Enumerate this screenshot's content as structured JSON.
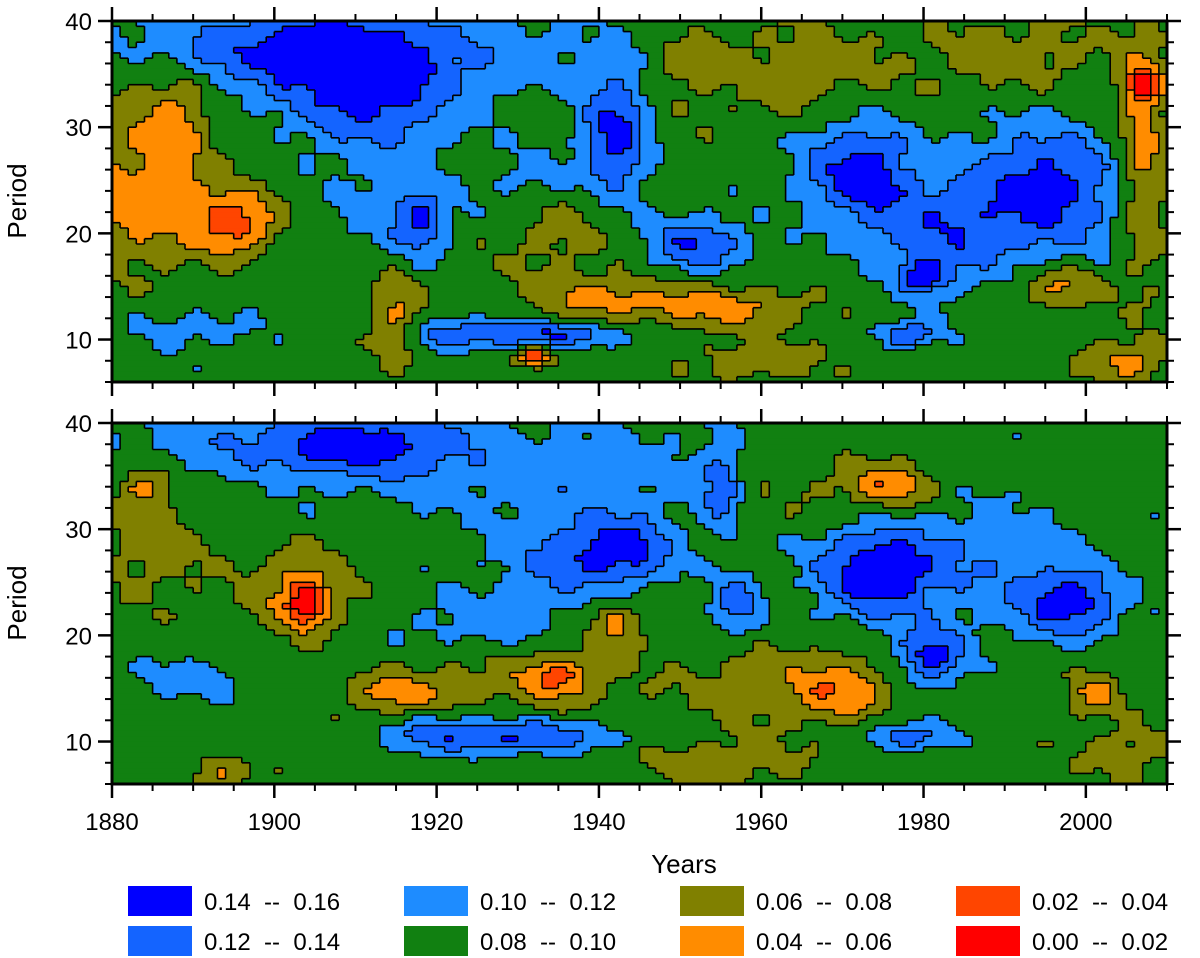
{
  "chart_data": [
    {
      "type": "heatmap",
      "panel": "top",
      "xlabel": "",
      "ylabel": "Period",
      "xlim": [
        1880,
        2010
      ],
      "ylim": [
        6,
        40
      ],
      "x_ticks": [
        1880,
        1900,
        1920,
        1940,
        1960,
        1980,
        2000
      ],
      "x_tick_labels": [],
      "y_ticks": [
        10,
        20,
        30,
        40
      ],
      "y_tick_labels": [
        "10",
        "20",
        "30",
        "40"
      ],
      "background_level": 0.09,
      "blobs": [
        {
          "x": 1912,
          "y": 34,
          "rx": 10,
          "ry": 6,
          "v": 0.15
        },
        {
          "x": 1904,
          "y": 37,
          "rx": 14,
          "ry": 4,
          "v": 0.13
        },
        {
          "x": 1890,
          "y": 38,
          "rx": 18,
          "ry": 3,
          "v": 0.11
        },
        {
          "x": 1930,
          "y": 37,
          "rx": 12,
          "ry": 4,
          "v": 0.11
        },
        {
          "x": 1942,
          "y": 29,
          "rx": 4,
          "ry": 6,
          "v": 0.15
        },
        {
          "x": 1932,
          "y": 25,
          "rx": 6,
          "ry": 3,
          "v": 0.115
        },
        {
          "x": 1952,
          "y": 19,
          "rx": 6,
          "ry": 2.5,
          "v": 0.14
        },
        {
          "x": 1972,
          "y": 26,
          "rx": 7,
          "ry": 5,
          "v": 0.15
        },
        {
          "x": 1995,
          "y": 24,
          "rx": 9,
          "ry": 6,
          "v": 0.15
        },
        {
          "x": 1982,
          "y": 20,
          "rx": 8,
          "ry": 5,
          "v": 0.13
        },
        {
          "x": 1980,
          "y": 16,
          "rx": 3,
          "ry": 1.5,
          "v": 0.145
        },
        {
          "x": 1918,
          "y": 21,
          "rx": 3,
          "ry": 3,
          "v": 0.13
        },
        {
          "x": 1915,
          "y": 22,
          "rx": 8,
          "ry": 4,
          "v": 0.11
        },
        {
          "x": 1933,
          "y": 10.5,
          "rx": 10,
          "ry": 1.2,
          "v": 0.14
        },
        {
          "x": 1922,
          "y": 10.5,
          "rx": 6,
          "ry": 1.5,
          "v": 0.12
        },
        {
          "x": 1978,
          "y": 10.5,
          "rx": 4,
          "ry": 1.2,
          "v": 0.14
        },
        {
          "x": 1890,
          "y": 11,
          "rx": 8,
          "ry": 2,
          "v": 0.11
        },
        {
          "x": 1895,
          "y": 21,
          "rx": 5,
          "ry": 3,
          "v": 0.03
        },
        {
          "x": 1888,
          "y": 30,
          "rx": 4,
          "ry": 5,
          "v": 0.055
        },
        {
          "x": 1882,
          "y": 27,
          "rx": 7,
          "ry": 9,
          "v": 0.07
        },
        {
          "x": 1885,
          "y": 22,
          "rx": 8,
          "ry": 5,
          "v": 0.065
        },
        {
          "x": 1935,
          "y": 21,
          "rx": 8,
          "ry": 5,
          "v": 0.07
        },
        {
          "x": 1955,
          "y": 13,
          "rx": 10,
          "ry": 2,
          "v": 0.05
        },
        {
          "x": 1940,
          "y": 14,
          "rx": 8,
          "ry": 2,
          "v": 0.055
        },
        {
          "x": 1965,
          "y": 35,
          "rx": 14,
          "ry": 5,
          "v": 0.07
        },
        {
          "x": 1992,
          "y": 37,
          "rx": 10,
          "ry": 4,
          "v": 0.07
        },
        {
          "x": 2007,
          "y": 28,
          "rx": 3,
          "ry": 12,
          "v": 0.05
        },
        {
          "x": 2007,
          "y": 34,
          "rx": 2,
          "ry": 1.5,
          "v": 0.025
        },
        {
          "x": 1997,
          "y": 15,
          "rx": 5,
          "ry": 2,
          "v": 0.05
        },
        {
          "x": 1915,
          "y": 12,
          "rx": 3,
          "ry": 4,
          "v": 0.055
        },
        {
          "x": 1950,
          "y": 36,
          "rx": 4,
          "ry": 3,
          "v": 0.075
        },
        {
          "x": 1932,
          "y": 8.5,
          "rx": 2,
          "ry": 1,
          "v": 0.03
        },
        {
          "x": 2005,
          "y": 8,
          "rx": 5,
          "ry": 2,
          "v": 0.055
        },
        {
          "x": 1960,
          "y": 8,
          "rx": 8,
          "ry": 2,
          "v": 0.065
        }
      ]
    },
    {
      "type": "heatmap",
      "panel": "bottom",
      "xlabel": "Years",
      "ylabel": "Period",
      "xlim": [
        1880,
        2010
      ],
      "ylim": [
        6,
        40
      ],
      "x_ticks": [
        1880,
        1900,
        1920,
        1940,
        1960,
        1980,
        2000
      ],
      "x_tick_labels": [
        "1880",
        "1900",
        "1920",
        "1940",
        "1960",
        "1980",
        "2000"
      ],
      "y_ticks": [
        10,
        20,
        30,
        40
      ],
      "y_tick_labels": [
        "10",
        "20",
        "30",
        "40"
      ],
      "background_level": 0.09,
      "blobs": [
        {
          "x": 1910,
          "y": 38,
          "rx": 12,
          "ry": 3,
          "v": 0.135
        },
        {
          "x": 1900,
          "y": 38,
          "rx": 24,
          "ry": 3,
          "v": 0.11
        },
        {
          "x": 1940,
          "y": 35,
          "rx": 30,
          "ry": 5,
          "v": 0.11
        },
        {
          "x": 1943,
          "y": 28,
          "rx": 6,
          "ry": 3,
          "v": 0.145
        },
        {
          "x": 1935,
          "y": 27,
          "rx": 8,
          "ry": 4,
          "v": 0.12
        },
        {
          "x": 1955,
          "y": 34,
          "rx": 2,
          "ry": 4,
          "v": 0.13
        },
        {
          "x": 1957,
          "y": 23,
          "rx": 3,
          "ry": 3,
          "v": 0.13
        },
        {
          "x": 1974,
          "y": 26,
          "rx": 7,
          "ry": 4,
          "v": 0.15
        },
        {
          "x": 1985,
          "y": 27,
          "rx": 14,
          "ry": 6,
          "v": 0.115
        },
        {
          "x": 1998,
          "y": 23,
          "rx": 6,
          "ry": 3,
          "v": 0.15
        },
        {
          "x": 1981,
          "y": 18,
          "rx": 4,
          "ry": 2.5,
          "v": 0.15
        },
        {
          "x": 1925,
          "y": 21,
          "rx": 10,
          "ry": 3,
          "v": 0.11
        },
        {
          "x": 1930,
          "y": 10.5,
          "rx": 12,
          "ry": 1.5,
          "v": 0.14
        },
        {
          "x": 1920,
          "y": 11,
          "rx": 6,
          "ry": 2,
          "v": 0.11
        },
        {
          "x": 1978,
          "y": 10.5,
          "rx": 5,
          "ry": 1.3,
          "v": 0.135
        },
        {
          "x": 1903,
          "y": 24,
          "rx": 6,
          "ry": 4,
          "v": 0.05
        },
        {
          "x": 1904,
          "y": 23,
          "rx": 2,
          "ry": 2,
          "v": 0.03
        },
        {
          "x": 1885,
          "y": 28,
          "rx": 7,
          "ry": 5,
          "v": 0.07
        },
        {
          "x": 1884,
          "y": 34,
          "rx": 3,
          "ry": 2,
          "v": 0.055
        },
        {
          "x": 1968,
          "y": 34,
          "rx": 14,
          "ry": 4,
          "v": 0.07
        },
        {
          "x": 1976,
          "y": 34,
          "rx": 5,
          "ry": 2,
          "v": 0.05
        },
        {
          "x": 1942,
          "y": 21,
          "rx": 3,
          "ry": 2,
          "v": 0.05
        },
        {
          "x": 1935,
          "y": 16,
          "rx": 4,
          "ry": 2,
          "v": 0.05
        },
        {
          "x": 1930,
          "y": 16,
          "rx": 14,
          "ry": 3,
          "v": 0.07
        },
        {
          "x": 1970,
          "y": 15,
          "rx": 6,
          "ry": 3,
          "v": 0.05
        },
        {
          "x": 1960,
          "y": 15,
          "rx": 10,
          "ry": 4,
          "v": 0.07
        },
        {
          "x": 2001,
          "y": 14.5,
          "rx": 3,
          "ry": 2,
          "v": 0.05
        },
        {
          "x": 2005,
          "y": 9,
          "rx": 6,
          "ry": 3,
          "v": 0.07
        },
        {
          "x": 1915,
          "y": 14.5,
          "rx": 6,
          "ry": 2,
          "v": 0.055
        },
        {
          "x": 1955,
          "y": 8,
          "rx": 10,
          "ry": 2,
          "v": 0.065
        },
        {
          "x": 1893,
          "y": 7,
          "rx": 4,
          "ry": 1.5,
          "v": 0.06
        },
        {
          "x": 1890,
          "y": 16,
          "rx": 8,
          "ry": 2,
          "v": 0.11
        }
      ]
    }
  ],
  "legend": {
    "entries": [
      {
        "label": "0.14  --  0.16",
        "color": "#0000ff"
      },
      {
        "label": "0.12  --  0.14",
        "color": "#1464ff"
      },
      {
        "label": "0.10  --  0.12",
        "color": "#1e8cff"
      },
      {
        "label": "0.08  --  0.10",
        "color": "#118011"
      },
      {
        "label": "0.06  --  0.08",
        "color": "#808000"
      },
      {
        "label": "0.04  --  0.06",
        "color": "#ff8c00"
      },
      {
        "label": "0.02  --  0.04",
        "color": "#ff4500"
      },
      {
        "label": "0.00  --  0.02",
        "color": "#ff0000"
      }
    ]
  },
  "levels": [
    0.02,
    0.04,
    0.06,
    0.08,
    0.1,
    0.12,
    0.14
  ]
}
